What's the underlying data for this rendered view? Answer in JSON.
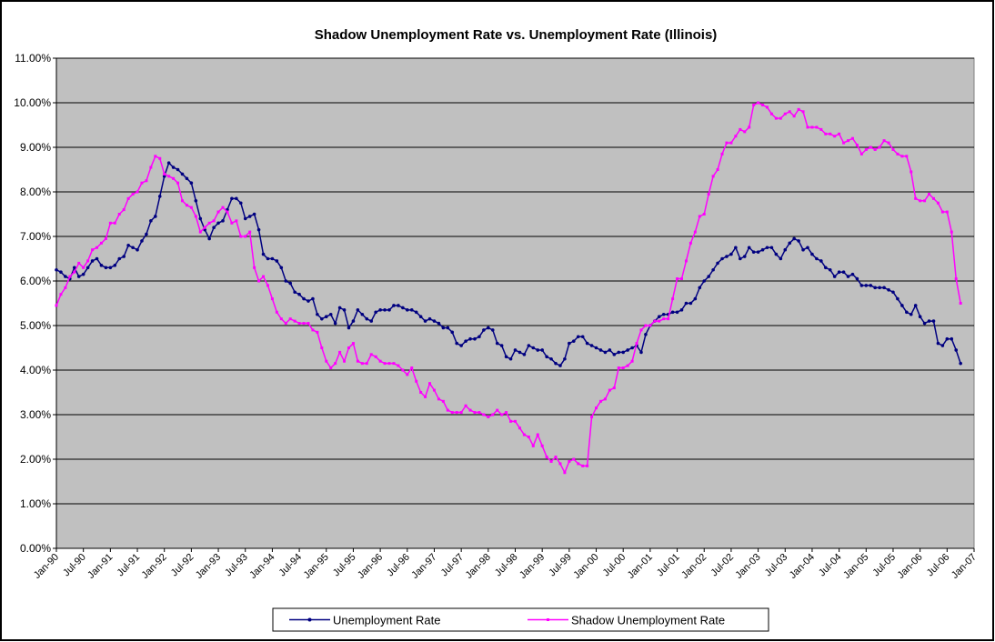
{
  "chart_data": {
    "type": "line",
    "title": "Shadow Unemployment Rate vs. Unemployment Rate (Illinois)",
    "x": [
      "1990-01",
      "1990-02",
      "1990-03",
      "1990-04",
      "1990-05",
      "1990-06",
      "1990-07",
      "1990-08",
      "1990-09",
      "1990-10",
      "1990-11",
      "1990-12",
      "1991-01",
      "1991-02",
      "1991-03",
      "1991-04",
      "1991-05",
      "1991-06",
      "1991-07",
      "1991-08",
      "1991-09",
      "1991-10",
      "1991-11",
      "1991-12",
      "1992-01",
      "1992-02",
      "1992-03",
      "1992-04",
      "1992-05",
      "1992-06",
      "1992-07",
      "1992-08",
      "1992-09",
      "1992-10",
      "1992-11",
      "1992-12",
      "1993-01",
      "1993-02",
      "1993-03",
      "1993-04",
      "1993-05",
      "1993-06",
      "1993-07",
      "1993-08",
      "1993-09",
      "1993-10",
      "1993-11",
      "1993-12",
      "1994-01",
      "1994-02",
      "1994-03",
      "1994-04",
      "1994-05",
      "1994-06",
      "1994-07",
      "1994-08",
      "1994-09",
      "1994-10",
      "1994-11",
      "1994-12",
      "1995-01",
      "1995-02",
      "1995-03",
      "1995-04",
      "1995-05",
      "1995-06",
      "1995-07",
      "1995-08",
      "1995-09",
      "1995-10",
      "1995-11",
      "1995-12",
      "1996-01",
      "1996-02",
      "1996-03",
      "1996-04",
      "1996-05",
      "1996-06",
      "1996-07",
      "1996-08",
      "1996-09",
      "1996-10",
      "1996-11",
      "1996-12",
      "1997-01",
      "1997-02",
      "1997-03",
      "1997-04",
      "1997-05",
      "1997-06",
      "1997-07",
      "1997-08",
      "1997-09",
      "1997-10",
      "1997-11",
      "1997-12",
      "1998-01",
      "1998-02",
      "1998-03",
      "1998-04",
      "1998-05",
      "1998-06",
      "1998-07",
      "1998-08",
      "1998-09",
      "1998-10",
      "1998-11",
      "1998-12",
      "1999-01",
      "1999-02",
      "1999-03",
      "1999-04",
      "1999-05",
      "1999-06",
      "1999-07",
      "1999-08",
      "1999-09",
      "1999-10",
      "1999-11",
      "1999-12",
      "2000-01",
      "2000-02",
      "2000-03",
      "2000-04",
      "2000-05",
      "2000-06",
      "2000-07",
      "2000-08",
      "2000-09",
      "2000-10",
      "2000-11",
      "2000-12",
      "2001-01",
      "2001-02",
      "2001-03",
      "2001-04",
      "2001-05",
      "2001-06",
      "2001-07",
      "2001-08",
      "2001-09",
      "2001-10",
      "2001-11",
      "2001-12",
      "2002-01",
      "2002-02",
      "2002-03",
      "2002-04",
      "2002-05",
      "2002-06",
      "2002-07",
      "2002-08",
      "2002-09",
      "2002-10",
      "2002-11",
      "2002-12",
      "2003-01",
      "2003-02",
      "2003-03",
      "2003-04",
      "2003-05",
      "2003-06",
      "2003-07",
      "2003-08",
      "2003-09",
      "2003-10",
      "2003-11",
      "2003-12",
      "2004-01",
      "2004-02",
      "2004-03",
      "2004-04",
      "2004-05",
      "2004-06",
      "2004-07",
      "2004-08",
      "2004-09",
      "2004-10",
      "2004-11",
      "2004-12",
      "2005-01",
      "2005-02",
      "2005-03",
      "2005-04",
      "2005-05",
      "2005-06",
      "2005-07",
      "2005-08",
      "2005-09",
      "2005-10",
      "2005-11",
      "2005-12",
      "2006-01",
      "2006-02",
      "2006-03",
      "2006-04",
      "2006-05",
      "2006-06",
      "2006-07",
      "2006-08",
      "2006-09",
      "2006-10"
    ],
    "series": [
      {
        "name": "Unemployment Rate",
        "color": "#000080",
        "values": [
          6.25,
          6.2,
          6.1,
          6.05,
          6.3,
          6.1,
          6.15,
          6.3,
          6.45,
          6.5,
          6.35,
          6.3,
          6.3,
          6.35,
          6.5,
          6.55,
          6.8,
          6.75,
          6.7,
          6.9,
          7.05,
          7.35,
          7.45,
          7.9,
          8.35,
          8.65,
          8.55,
          8.5,
          8.4,
          8.3,
          8.2,
          7.8,
          7.4,
          7.15,
          6.95,
          7.2,
          7.3,
          7.35,
          7.6,
          7.85,
          7.85,
          7.75,
          7.4,
          7.45,
          7.5,
          7.15,
          6.6,
          6.5,
          6.5,
          6.45,
          6.3,
          6.0,
          5.95,
          5.75,
          5.7,
          5.6,
          5.55,
          5.6,
          5.25,
          5.15,
          5.2,
          5.25,
          5.05,
          5.4,
          5.35,
          4.95,
          5.1,
          5.35,
          5.25,
          5.15,
          5.1,
          5.3,
          5.35,
          5.35,
          5.35,
          5.45,
          5.45,
          5.4,
          5.35,
          5.35,
          5.3,
          5.2,
          5.1,
          5.15,
          5.1,
          5.05,
          4.95,
          4.95,
          4.85,
          4.6,
          4.55,
          4.65,
          4.7,
          4.7,
          4.75,
          4.9,
          4.95,
          4.9,
          4.6,
          4.55,
          4.3,
          4.25,
          4.45,
          4.4,
          4.35,
          4.55,
          4.5,
          4.45,
          4.45,
          4.3,
          4.25,
          4.15,
          4.1,
          4.25,
          4.6,
          4.65,
          4.75,
          4.75,
          4.6,
          4.55,
          4.5,
          4.45,
          4.4,
          4.45,
          4.35,
          4.4,
          4.4,
          4.45,
          4.5,
          4.55,
          4.4,
          4.8,
          5.0,
          5.1,
          5.2,
          5.25,
          5.25,
          5.3,
          5.3,
          5.35,
          5.5,
          5.5,
          5.6,
          5.85,
          6.0,
          6.1,
          6.25,
          6.4,
          6.5,
          6.55,
          6.6,
          6.75,
          6.5,
          6.55,
          6.75,
          6.65,
          6.65,
          6.7,
          6.75,
          6.75,
          6.6,
          6.5,
          6.7,
          6.85,
          6.95,
          6.9,
          6.7,
          6.75,
          6.6,
          6.5,
          6.45,
          6.3,
          6.25,
          6.1,
          6.2,
          6.2,
          6.1,
          6.15,
          6.05,
          5.9,
          5.9,
          5.9,
          5.85,
          5.85,
          5.85,
          5.8,
          5.75,
          5.6,
          5.45,
          5.3,
          5.25,
          5.45,
          5.2,
          5.05,
          5.1,
          5.1,
          4.6,
          4.55,
          4.7,
          4.7,
          4.45,
          4.15
        ]
      },
      {
        "name": "Shadow Unemployment Rate",
        "color": "#ff00ff",
        "values": [
          5.45,
          5.7,
          5.85,
          6.1,
          6.2,
          6.4,
          6.3,
          6.45,
          6.7,
          6.75,
          6.85,
          6.95,
          7.3,
          7.3,
          7.5,
          7.6,
          7.85,
          7.95,
          8.0,
          8.2,
          8.25,
          8.55,
          8.8,
          8.75,
          8.4,
          8.35,
          8.3,
          8.2,
          7.8,
          7.7,
          7.65,
          7.45,
          7.1,
          7.2,
          7.3,
          7.35,
          7.55,
          7.65,
          7.55,
          7.3,
          7.35,
          7.0,
          7.0,
          7.1,
          6.3,
          6.0,
          6.1,
          5.9,
          5.6,
          5.3,
          5.15,
          5.05,
          5.15,
          5.1,
          5.05,
          5.05,
          5.05,
          4.9,
          4.85,
          4.5,
          4.2,
          4.05,
          4.15,
          4.4,
          4.2,
          4.5,
          4.6,
          4.2,
          4.15,
          4.15,
          4.35,
          4.3,
          4.2,
          4.15,
          4.15,
          4.15,
          4.1,
          4.0,
          3.9,
          4.05,
          3.75,
          3.5,
          3.4,
          3.7,
          3.55,
          3.35,
          3.3,
          3.1,
          3.05,
          3.05,
          3.05,
          3.2,
          3.1,
          3.05,
          3.05,
          3.0,
          2.95,
          3.0,
          3.1,
          3.0,
          3.05,
          2.85,
          2.85,
          2.7,
          2.55,
          2.5,
          2.3,
          2.55,
          2.3,
          2.05,
          1.95,
          2.05,
          1.9,
          1.7,
          1.95,
          2.0,
          1.9,
          1.85,
          1.85,
          2.95,
          3.15,
          3.3,
          3.35,
          3.55,
          3.6,
          4.05,
          4.05,
          4.1,
          4.2,
          4.6,
          4.9,
          5.0,
          5.0,
          5.1,
          5.1,
          5.15,
          5.15,
          5.6,
          6.05,
          6.05,
          6.45,
          6.85,
          7.1,
          7.45,
          7.5,
          7.95,
          8.35,
          8.5,
          8.85,
          9.1,
          9.1,
          9.25,
          9.4,
          9.35,
          9.45,
          9.95,
          10.0,
          9.95,
          9.9,
          9.75,
          9.65,
          9.65,
          9.75,
          9.8,
          9.7,
          9.85,
          9.8,
          9.45,
          9.45,
          9.45,
          9.4,
          9.3,
          9.3,
          9.25,
          9.3,
          9.1,
          9.15,
          9.2,
          9.05,
          8.85,
          8.95,
          9.0,
          8.95,
          9.0,
          9.15,
          9.1,
          8.95,
          8.85,
          8.8,
          8.8,
          8.45,
          7.85,
          7.8,
          7.8,
          7.95,
          7.85,
          7.75,
          7.55,
          7.55,
          7.1,
          6.05,
          5.5
        ]
      }
    ],
    "xlim": [
      "1990-01",
      "2007-01"
    ],
    "xticks": [
      {
        "value": "1990-01",
        "label": "Jan-90"
      },
      {
        "value": "1990-07",
        "label": "Jul-90"
      },
      {
        "value": "1991-01",
        "label": "Jan-91"
      },
      {
        "value": "1991-07",
        "label": "Jul-91"
      },
      {
        "value": "1992-01",
        "label": "Jan-92"
      },
      {
        "value": "1992-07",
        "label": "Jul-92"
      },
      {
        "value": "1993-01",
        "label": "Jan-93"
      },
      {
        "value": "1993-07",
        "label": "Jul-93"
      },
      {
        "value": "1994-01",
        "label": "Jan-94"
      },
      {
        "value": "1994-07",
        "label": "Jul-94"
      },
      {
        "value": "1995-01",
        "label": "Jan-95"
      },
      {
        "value": "1995-07",
        "label": "Jul-95"
      },
      {
        "value": "1996-01",
        "label": "Jan-96"
      },
      {
        "value": "1996-07",
        "label": "Jul-96"
      },
      {
        "value": "1997-01",
        "label": "Jan-97"
      },
      {
        "value": "1997-07",
        "label": "Jul-97"
      },
      {
        "value": "1998-01",
        "label": "Jan-98"
      },
      {
        "value": "1998-07",
        "label": "Jul-98"
      },
      {
        "value": "1999-01",
        "label": "Jan-99"
      },
      {
        "value": "1999-07",
        "label": "Jul-99"
      },
      {
        "value": "2000-01",
        "label": "Jan-00"
      },
      {
        "value": "2000-07",
        "label": "Jul-00"
      },
      {
        "value": "2001-01",
        "label": "Jan-01"
      },
      {
        "value": "2001-07",
        "label": "Jul-01"
      },
      {
        "value": "2002-01",
        "label": "Jan-02"
      },
      {
        "value": "2002-07",
        "label": "Jul-02"
      },
      {
        "value": "2003-01",
        "label": "Jan-03"
      },
      {
        "value": "2003-07",
        "label": "Jul-03"
      },
      {
        "value": "2004-01",
        "label": "Jan-04"
      },
      {
        "value": "2004-07",
        "label": "Jul-04"
      },
      {
        "value": "2005-01",
        "label": "Jan-05"
      },
      {
        "value": "2005-07",
        "label": "Jul-05"
      },
      {
        "value": "2006-01",
        "label": "Jan-06"
      },
      {
        "value": "2006-07",
        "label": "Jul-06"
      },
      {
        "value": "2007-01",
        "label": "Jan-07"
      }
    ],
    "ylim": [
      0,
      11
    ],
    "yticks": [
      {
        "value": 0,
        "label": "0.00%"
      },
      {
        "value": 1,
        "label": "1.00%"
      },
      {
        "value": 2,
        "label": "2.00%"
      },
      {
        "value": 3,
        "label": "3.00%"
      },
      {
        "value": 4,
        "label": "4.00%"
      },
      {
        "value": 5,
        "label": "5.00%"
      },
      {
        "value": 6,
        "label": "6.00%"
      },
      {
        "value": 7,
        "label": "7.00%"
      },
      {
        "value": 8,
        "label": "8.00%"
      },
      {
        "value": 9,
        "label": "9.00%"
      },
      {
        "value": 10,
        "label": "10.00%"
      },
      {
        "value": 11,
        "label": "11.00%"
      }
    ],
    "grid": true,
    "plot_background": "#c0c0c0",
    "legend": "bottom"
  }
}
